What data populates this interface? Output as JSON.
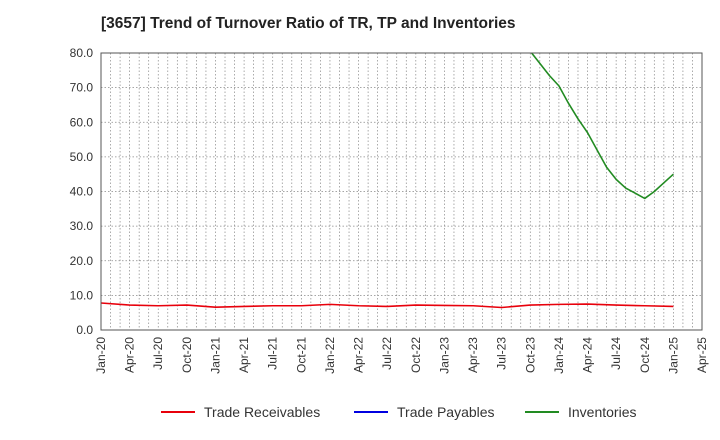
{
  "title": "[3657]  Trend of Turnover Ratio of TR, TP and Inventories",
  "colors": {
    "trade_receivables": "#e8000b",
    "trade_payables": "#0000e0",
    "inventories": "#228b22",
    "grid": "#888888",
    "axis": "#555555"
  },
  "legend": [
    {
      "label": "Trade Receivables",
      "color": "#e8000b"
    },
    {
      "label": "Trade Payables",
      "color": "#0000e0"
    },
    {
      "label": "Inventories",
      "color": "#228b22"
    }
  ],
  "chart_data": {
    "type": "line",
    "title": "[3657]  Trend of Turnover Ratio of TR, TP and Inventories",
    "xlabel": "",
    "ylabel": "",
    "ylim": [
      0,
      80
    ],
    "yticks": [
      "0.0",
      "10.0",
      "20.0",
      "30.0",
      "40.0",
      "50.0",
      "60.0",
      "70.0",
      "80.0"
    ],
    "xtick_labels": [
      "Jan-20",
      "Apr-20",
      "Jul-20",
      "Oct-20",
      "Jan-21",
      "Apr-21",
      "Jul-21",
      "Oct-21",
      "Jan-22",
      "Apr-22",
      "Jul-22",
      "Oct-22",
      "Jan-23",
      "Apr-23",
      "Jul-23",
      "Oct-23",
      "Jan-24",
      "Apr-24",
      "Jul-24",
      "Oct-24",
      "Jan-25",
      "Apr-25"
    ],
    "grid": true,
    "legend_position": "bottom",
    "series": [
      {
        "name": "Trade Receivables",
        "x": [
          "Jan-20",
          "Apr-20",
          "Jul-20",
          "Oct-20",
          "Jan-21",
          "Apr-21",
          "Jul-21",
          "Oct-21",
          "Jan-22",
          "Apr-22",
          "Jul-22",
          "Oct-22",
          "Jan-23",
          "Apr-23",
          "Jul-23",
          "Oct-23",
          "Jan-24",
          "Apr-24",
          "Jul-24",
          "Oct-24",
          "Jan-25"
        ],
        "values": [
          7.8,
          7.2,
          7.0,
          7.2,
          6.6,
          6.8,
          7.0,
          7.0,
          7.4,
          7.0,
          6.8,
          7.2,
          7.1,
          7.0,
          6.5,
          7.2,
          7.4,
          7.5,
          7.2,
          7.0,
          6.8
        ]
      },
      {
        "name": "Trade Payables",
        "x": [],
        "values": []
      },
      {
        "name": "Inventories",
        "x": [
          "Oct-23",
          "Nov-23",
          "Dec-23",
          "Jan-24",
          "Feb-24",
          "Mar-24",
          "Apr-24",
          "May-24",
          "Jun-24",
          "Jul-24",
          "Aug-24",
          "Sep-24",
          "Oct-24",
          "Nov-24",
          "Dec-24",
          "Jan-25"
        ],
        "values": [
          80.5,
          77.0,
          73.5,
          70.5,
          65.5,
          61.0,
          57.0,
          52.0,
          47.0,
          43.5,
          41.0,
          39.5,
          38.0,
          40.0,
          42.5,
          45.0
        ]
      }
    ]
  }
}
